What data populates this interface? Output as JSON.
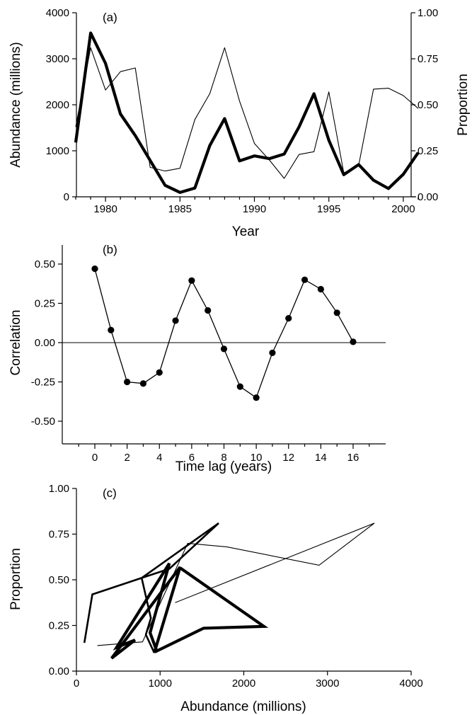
{
  "chart_data": [
    {
      "panel": "(a)",
      "type": "line",
      "xlabel": "Year",
      "ylabel": "Abundance (millions)",
      "y2label": "Proportion",
      "xlim": [
        1977,
        2002
      ],
      "ylim": [
        0,
        4000
      ],
      "y2lim": [
        0,
        1.0
      ],
      "xticks": [
        "1980",
        "1985",
        "1990",
        "1995",
        "2000"
      ],
      "yticks": [
        "0",
        "1000",
        "2000",
        "3000",
        "4000"
      ],
      "y2ticks": [
        "0.00",
        "0.25",
        "0.50",
        "0.75",
        "1.00"
      ],
      "x": [
        1978,
        1979,
        1980,
        1981,
        1982,
        1983,
        1984,
        1985,
        1986,
        1987,
        1988,
        1989,
        1990,
        1991,
        1992,
        1993,
        1994,
        1995,
        1996,
        1997,
        1998,
        1999,
        2000,
        2001
      ],
      "series": [
        {
          "axis": "left",
          "style": "thick",
          "values": [
            1180,
            3560,
            2900,
            1800,
            1330,
            790,
            250,
            95,
            190,
            1110,
            1700,
            780,
            890,
            830,
            930,
            1520,
            2240,
            1230,
            480,
            700,
            360,
            180,
            490,
            960
          ]
        },
        {
          "axis": "right",
          "style": "thin",
          "values": [
            0.38,
            0.81,
            0.58,
            0.68,
            0.7,
            0.16,
            0.14,
            0.155,
            0.42,
            0.56,
            0.81,
            0.52,
            0.29,
            0.2,
            0.1,
            0.23,
            0.245,
            0.57,
            0.13,
            0.17,
            0.585,
            0.59,
            0.55,
            0.48
          ]
        }
      ],
      "grid": false
    },
    {
      "panel": "(b)",
      "type": "line",
      "xlabel": "Time lag (years)",
      "ylabel": "Correlation",
      "xlim": [
        -1,
        17
      ],
      "ylim": [
        -0.6,
        0.6
      ],
      "xticks": [
        "0",
        "2",
        "4",
        "6",
        "8",
        "10",
        "12",
        "14",
        "16"
      ],
      "yticks": [
        "-0.50",
        "-0.25",
        "0.00",
        "0.25",
        "0.50"
      ],
      "x": [
        0,
        1,
        2,
        3,
        4,
        5,
        6,
        7,
        8,
        9,
        10,
        11,
        12,
        13,
        14,
        15,
        16
      ],
      "series": [
        {
          "markers": "filled-circle",
          "values": [
            0.47,
            0.08,
            -0.25,
            -0.26,
            -0.19,
            0.14,
            0.395,
            0.205,
            -0.04,
            -0.28,
            -0.35,
            -0.065,
            0.155,
            0.4,
            0.34,
            0.19,
            0.005
          ]
        }
      ],
      "reference_line": 0,
      "grid": false
    },
    {
      "panel": "(c)",
      "type": "line",
      "xlabel": "Abundance (millions)",
      "ylabel": "Proportion",
      "xlim": [
        0,
        4000
      ],
      "ylim": [
        0,
        1.0
      ],
      "xticks": [
        "0",
        "1000",
        "2000",
        "3000",
        "4000"
      ],
      "yticks": [
        "0.00",
        "0.25",
        "0.50",
        "0.75",
        "1.00"
      ],
      "series": [
        {
          "style": "thin",
          "points": [
            [
              1180,
              0.375
            ],
            [
              3560,
              0.81
            ],
            [
              2900,
              0.58
            ],
            [
              1800,
              0.68
            ],
            [
              1330,
              0.7
            ],
            [
              790,
              0.16
            ],
            [
              250,
              0.14
            ]
          ]
        },
        {
          "style": "medium",
          "points": [
            [
              95,
              0.155
            ],
            [
              190,
              0.42
            ],
            [
              780,
              0.51
            ],
            [
              1110,
              0.56
            ],
            [
              1700,
              0.81
            ],
            [
              780,
              0.51
            ],
            [
              890,
              0.29
            ],
            [
              830,
              0.2
            ],
            [
              930,
              0.1
            ]
          ]
        },
        {
          "style": "thick",
          "points": [
            [
              930,
              0.1
            ],
            [
              1240,
              0.57
            ],
            [
              420,
              0.07
            ],
            [
              700,
              0.17
            ],
            [
              480,
              0.13
            ],
            [
              1110,
              0.59
            ],
            [
              880,
              0.21
            ],
            [
              960,
              0.11
            ],
            [
              1520,
              0.235
            ],
            [
              2240,
              0.245
            ],
            [
              1240,
              0.565
            ]
          ]
        }
      ],
      "grid": false
    }
  ]
}
